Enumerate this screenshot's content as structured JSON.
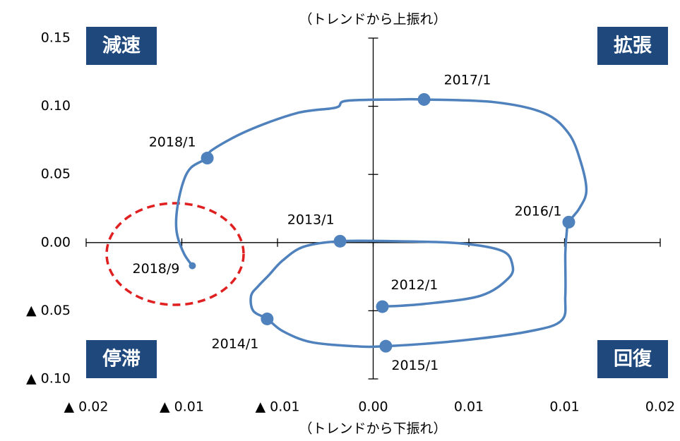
{
  "chart_data": {
    "type": "line",
    "top_label": "（トレンドから上振れ）",
    "bottom_label": "（トレンドから下振れ）",
    "quadrants": {
      "top_left": "減速",
      "top_right": "拡張",
      "bottom_left": "停滞",
      "bottom_right": "回復"
    },
    "xlim": [
      -0.015,
      0.015
    ],
    "ylim": [
      -0.1,
      0.15
    ],
    "xticks": [
      {
        "value": -0.015,
        "label": "▲ 0.02"
      },
      {
        "value": -0.01,
        "label": "▲ 0.01"
      },
      {
        "value": -0.005,
        "label": "▲ 0.01"
      },
      {
        "value": 0,
        "label": "0.00"
      },
      {
        "value": 0.005,
        "label": "0.01"
      },
      {
        "value": 0.01,
        "label": "0.01"
      },
      {
        "value": 0.015,
        "label": "0.02"
      }
    ],
    "yticks": [
      {
        "value": -0.1,
        "label": "▲ 0.10"
      },
      {
        "value": -0.05,
        "label": "▲ 0.05"
      },
      {
        "value": 0,
        "label": "0.00"
      },
      {
        "value": 0.05,
        "label": "0.05"
      },
      {
        "value": 0.1,
        "label": "0.10"
      },
      {
        "value": 0.15,
        "label": "0.15"
      }
    ],
    "color": "#4f81bd",
    "x": [
      0.00048,
      0.00266,
      0.00561,
      0.00708,
      0.00727,
      0.00672,
      0.0045,
      0.00118,
      -0.00173,
      -0.00362,
      -0.00472,
      -0.00546,
      -0.00601,
      -0.00638,
      -0.00627,
      -0.00554,
      -0.00472,
      -0.00325,
      -0.00103,
      0.00066,
      0.0045,
      0.00819,
      0.00985,
      0.01004,
      0.01004,
      0.01011,
      0.01022,
      0.01077,
      0.01114,
      0.01085,
      0.01022,
      0.00893,
      0.00635,
      0.00266,
      0.00129,
      -0.0014,
      -0.00196,
      -0.00399,
      -0.00657,
      -0.00841,
      -0.00867,
      -0.00952,
      -0.00996,
      -0.01026,
      -0.01026,
      -0.00989,
      -0.00945
    ],
    "y": [
      -0.047,
      -0.045,
      -0.039,
      -0.026,
      -0.016,
      -0.006,
      -0.0005,
      0.001,
      0.001,
      -0.003,
      -0.013,
      -0.024,
      -0.032,
      -0.039,
      -0.05,
      -0.056,
      -0.065,
      -0.073,
      -0.076,
      -0.076,
      -0.072,
      -0.065,
      -0.057,
      -0.039,
      -0.008,
      0.007,
      0.015,
      0.025,
      0.038,
      0.059,
      0.08,
      0.095,
      0.103,
      0.105,
      0.105,
      0.104,
      0.099,
      0.095,
      0.082,
      0.068,
      0.062,
      0.055,
      0.043,
      0.023,
      0.007,
      -0.008,
      -0.017
    ],
    "labels": [
      "2012/1",
      null,
      null,
      null,
      null,
      null,
      null,
      null,
      "2013/1",
      null,
      null,
      null,
      null,
      null,
      null,
      "2014/1",
      null,
      null,
      null,
      "2015/1",
      null,
      null,
      null,
      null,
      null,
      null,
      "2016/1",
      null,
      null,
      null,
      null,
      null,
      null,
      "2017/1",
      null,
      null,
      null,
      null,
      null,
      null,
      "2018/1",
      null,
      null,
      null,
      null,
      null,
      "2018/9"
    ]
  }
}
